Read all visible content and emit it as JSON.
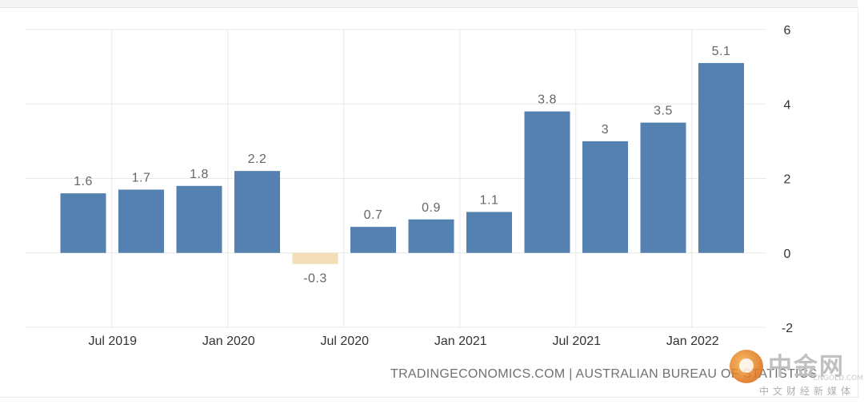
{
  "chart_data": {
    "type": "bar",
    "categories": [
      "Jun 2019",
      "Sep 2019",
      "Dec 2019",
      "Mar 2020",
      "Jun 2020",
      "Sep 2020",
      "Dec 2020",
      "Mar 2021",
      "Jun 2021",
      "Sep 2021",
      "Dec 2021",
      "Mar 2022"
    ],
    "values": [
      1.6,
      1.7,
      1.8,
      2.2,
      -0.3,
      0.7,
      0.9,
      1.1,
      3.8,
      3,
      3.5,
      5.1
    ],
    "value_labels": [
      "1.6",
      "1.7",
      "1.8",
      "2.2",
      "-0.3",
      "0.7",
      "0.9",
      "1.1",
      "3.8",
      "3",
      "3.5",
      "5.1"
    ],
    "x_ticks": [
      "Jul 2019",
      "Jan 2020",
      "Jul 2020",
      "Jan 2021",
      "Jul 2021",
      "Jan 2022"
    ],
    "y_ticks": [
      "6",
      "4",
      "2",
      "0",
      "-2"
    ],
    "ylim": [
      -2,
      6
    ],
    "y_axis_side": "right",
    "grid": true,
    "colors": {
      "positive": "#5581b1",
      "negative": "#f2dfba",
      "grid": "#e8e8e8"
    }
  },
  "source": "TRADINGECONOMICS.COM | AUSTRALIAN BUREAU OF STATISTICS",
  "watermark": {
    "title": "中金网",
    "domain": "CNGOLD.COM.CN",
    "subtitle": "中文财经新媒体"
  }
}
